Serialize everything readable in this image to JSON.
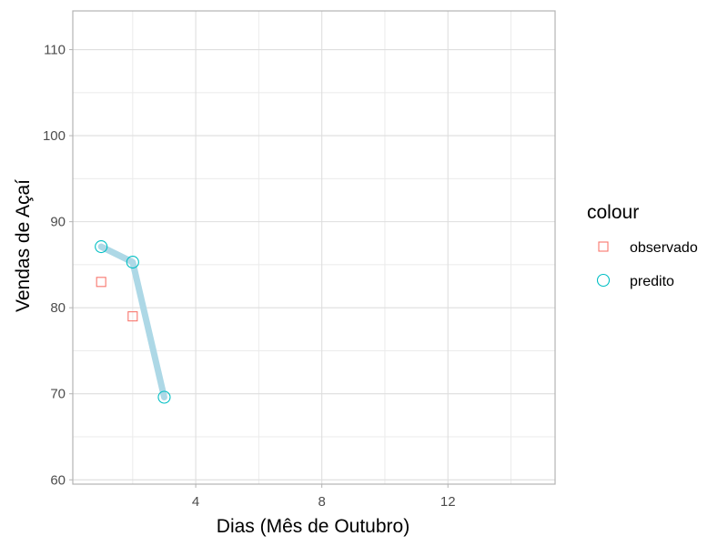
{
  "chart_data": {
    "type": "line",
    "xlabel": "Dias (Mês de Outubro)",
    "ylabel": "Vendas de Açaí",
    "xlim": [
      0.1,
      15.4
    ],
    "ylim": [
      59.5,
      114.5
    ],
    "x_ticks": [
      4,
      8,
      12
    ],
    "x_tick_labels": [
      "4",
      "8",
      "12"
    ],
    "y_ticks": [
      60,
      70,
      80,
      90,
      100,
      110
    ],
    "y_tick_labels": [
      "60",
      "70",
      "80",
      "90",
      "100",
      "110"
    ],
    "grid": true,
    "legend": {
      "title": "colour",
      "placement": "right",
      "entries": [
        {
          "label": "observado",
          "shape": "square",
          "color": "#F8766D"
        },
        {
          "label": "predito",
          "shape": "circle",
          "color": "#00BFC4"
        }
      ]
    },
    "series": [
      {
        "name": "observado",
        "shape": "square",
        "color": "#F8766D",
        "x": [
          1,
          2
        ],
        "y": [
          83,
          79
        ]
      },
      {
        "name": "predito",
        "shape": "circle",
        "color": "#00BFC4",
        "line_color": "#ADD8E6",
        "x": [
          1,
          2,
          3
        ],
        "y": [
          87.1,
          85.3,
          69.6
        ]
      }
    ]
  }
}
